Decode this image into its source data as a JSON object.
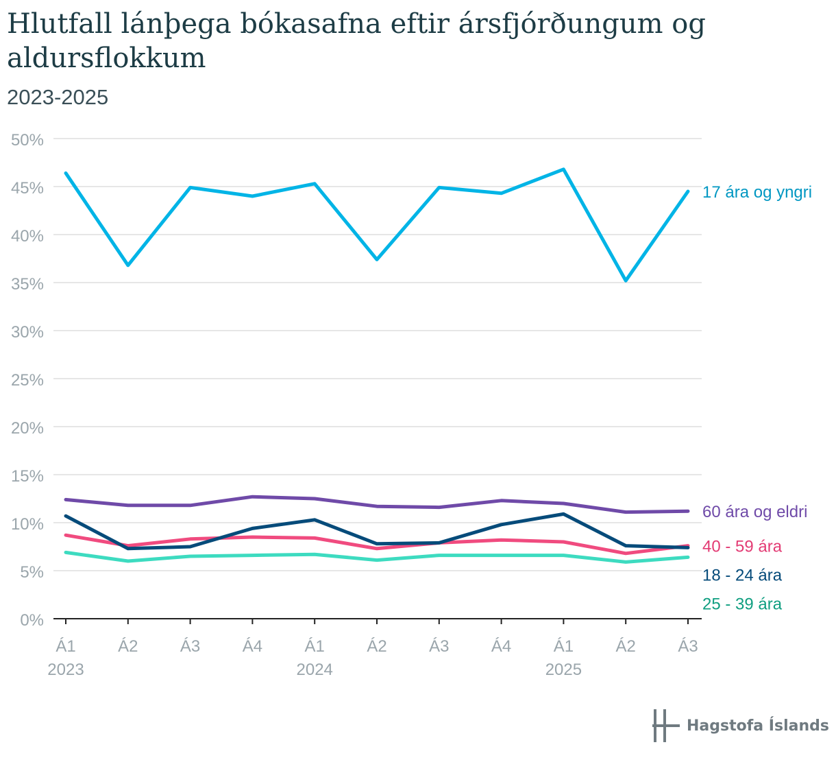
{
  "chart_data": {
    "type": "line",
    "title": "Hlutfall lánþega bókasafna eftir ársfjórðungum og aldursflokkum",
    "subtitle": "2023-2025",
    "xlabel": "",
    "ylabel": "",
    "ylim": [
      0,
      50
    ],
    "yticks": [
      "0%",
      "5%",
      "10%",
      "15%",
      "20%",
      "25%",
      "30%",
      "35%",
      "40%",
      "45%",
      "50%"
    ],
    "categories": [
      "Á1",
      "Á2",
      "Á3",
      "Á4",
      "Á1",
      "Á2",
      "Á3",
      "Á4",
      "Á1",
      "Á2",
      "Á3"
    ],
    "year_labels": [
      {
        "index": 0,
        "label": "2023"
      },
      {
        "index": 4,
        "label": "2024"
      },
      {
        "index": 8,
        "label": "2025"
      }
    ],
    "grid": true,
    "series": [
      {
        "name": "17 ára og yngri",
        "color": "#00b4e6",
        "label_color": "#0097c2",
        "values": [
          46.4,
          36.8,
          44.9,
          44.0,
          45.3,
          37.4,
          44.9,
          44.3,
          46.8,
          35.2,
          44.5
        ]
      },
      {
        "name": "60 ára og eldri",
        "color": "#6f4aa8",
        "label_color": "#6f4aa8",
        "values": [
          12.4,
          11.8,
          11.8,
          12.7,
          12.5,
          11.7,
          11.6,
          12.3,
          12.0,
          11.1,
          11.2
        ]
      },
      {
        "name": "40 - 59 ára",
        "color": "#f04b7f",
        "label_color": "#e33b74",
        "values": [
          8.7,
          7.6,
          8.3,
          8.5,
          8.4,
          7.3,
          7.9,
          8.2,
          8.0,
          6.8,
          7.6
        ]
      },
      {
        "name": "18 - 24 ára",
        "color": "#064b7a",
        "label_color": "#064b7a",
        "values": [
          10.7,
          7.3,
          7.5,
          9.4,
          10.3,
          7.8,
          7.9,
          9.8,
          10.9,
          7.6,
          7.4
        ]
      },
      {
        "name": "25 - 39 ára",
        "color": "#3ddbc0",
        "label_color": "#0f9e80",
        "values": [
          6.9,
          6.0,
          6.5,
          6.6,
          6.7,
          6.1,
          6.6,
          6.6,
          6.6,
          5.9,
          6.4
        ]
      }
    ]
  },
  "logo": {
    "text": "Hagstofa Íslands",
    "color": "#6f7a80"
  }
}
